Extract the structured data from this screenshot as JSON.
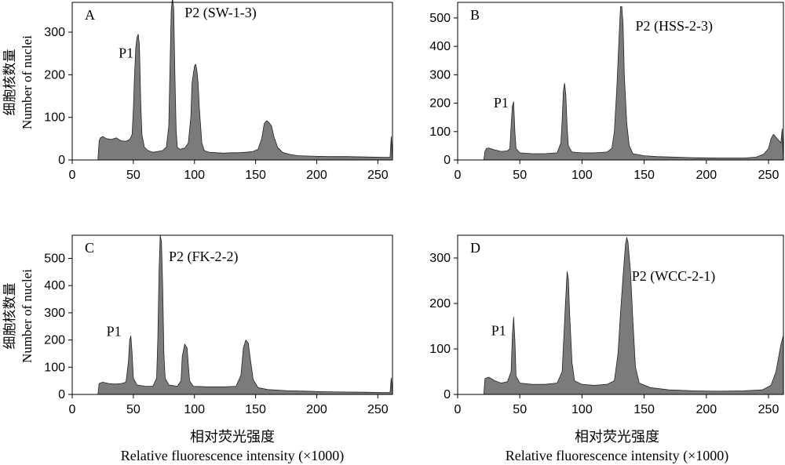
{
  "figure": {
    "ylabel_cn": "细胞核数量",
    "ylabel_en": "Number of nuclei",
    "xlabel_cn": "相对荧光强度",
    "xlabel_en": "Relative fluorescence intensity (×1000)"
  },
  "colors": {
    "fill": "#7b7b7b",
    "stroke": "#222222",
    "axis": "#000000"
  },
  "chart_data": [
    {
      "type": "area",
      "panel_label": "A",
      "xlim": [
        0,
        262
      ],
      "ylim": [
        0,
        370
      ],
      "xticks": [
        0,
        50,
        100,
        150,
        200,
        250
      ],
      "yticks": [
        0,
        100,
        200,
        300
      ],
      "annotations": [
        {
          "text": "P1",
          "x": 38,
          "y": 240
        },
        {
          "text": "P2 (SW-1-3)",
          "x": 92,
          "y": 335
        }
      ],
      "points": [
        [
          0,
          0
        ],
        [
          20,
          0
        ],
        [
          21,
          0
        ],
        [
          22,
          45
        ],
        [
          23,
          52
        ],
        [
          25,
          55
        ],
        [
          28,
          50
        ],
        [
          32,
          48
        ],
        [
          36,
          52
        ],
        [
          40,
          45
        ],
        [
          44,
          44
        ],
        [
          47,
          48
        ],
        [
          49,
          60
        ],
        [
          50,
          120
        ],
        [
          51,
          200
        ],
        [
          52,
          265
        ],
        [
          53,
          288
        ],
        [
          54,
          295
        ],
        [
          55,
          270
        ],
        [
          56,
          140
        ],
        [
          57,
          60
        ],
        [
          59,
          30
        ],
        [
          62,
          22
        ],
        [
          66,
          18
        ],
        [
          70,
          20
        ],
        [
          74,
          22
        ],
        [
          77,
          30
        ],
        [
          79,
          80
        ],
        [
          80,
          220
        ],
        [
          81,
          350
        ],
        [
          82,
          380
        ],
        [
          83,
          355
        ],
        [
          84,
          200
        ],
        [
          85,
          70
        ],
        [
          86,
          30
        ],
        [
          88,
          25
        ],
        [
          92,
          28
        ],
        [
          95,
          40
        ],
        [
          97,
          100
        ],
        [
          98,
          180
        ],
        [
          100,
          220
        ],
        [
          101,
          225
        ],
        [
          102,
          210
        ],
        [
          103,
          180
        ],
        [
          104,
          120
        ],
        [
          106,
          40
        ],
        [
          108,
          22
        ],
        [
          112,
          18
        ],
        [
          118,
          17
        ],
        [
          124,
          16
        ],
        [
          130,
          17
        ],
        [
          136,
          17
        ],
        [
          142,
          18
        ],
        [
          148,
          20
        ],
        [
          152,
          25
        ],
        [
          155,
          50
        ],
        [
          157,
          85
        ],
        [
          159,
          92
        ],
        [
          161,
          88
        ],
        [
          163,
          80
        ],
        [
          165,
          55
        ],
        [
          168,
          30
        ],
        [
          172,
          18
        ],
        [
          178,
          13
        ],
        [
          185,
          10
        ],
        [
          195,
          9
        ],
        [
          210,
          8
        ],
        [
          225,
          8
        ],
        [
          240,
          7
        ],
        [
          255,
          6
        ],
        [
          260,
          6
        ],
        [
          261,
          55
        ],
        [
          262,
          0
        ]
      ]
    },
    {
      "type": "area",
      "panel_label": "B",
      "xlim": [
        0,
        262
      ],
      "ylim": [
        0,
        555
      ],
      "xticks": [
        0,
        50,
        100,
        150,
        200,
        250
      ],
      "yticks": [
        0,
        100,
        200,
        300,
        400,
        500
      ],
      "annotations": [
        {
          "text": "P1",
          "x": 29,
          "y": 185
        },
        {
          "text": "P2 (HSS-2-3)",
          "x": 143,
          "y": 455
        }
      ],
      "points": [
        [
          0,
          0
        ],
        [
          20,
          0
        ],
        [
          21,
          0
        ],
        [
          22,
          30
        ],
        [
          23,
          40
        ],
        [
          25,
          42
        ],
        [
          30,
          35
        ],
        [
          35,
          30
        ],
        [
          40,
          32
        ],
        [
          42,
          40
        ],
        [
          43,
          120
        ],
        [
          44,
          190
        ],
        [
          45,
          205
        ],
        [
          46,
          100
        ],
        [
          47,
          40
        ],
        [
          50,
          25
        ],
        [
          60,
          22
        ],
        [
          70,
          22
        ],
        [
          80,
          25
        ],
        [
          83,
          60
        ],
        [
          84,
          140
        ],
        [
          85,
          240
        ],
        [
          86,
          270
        ],
        [
          87,
          230
        ],
        [
          88,
          120
        ],
        [
          89,
          50
        ],
        [
          92,
          28
        ],
        [
          100,
          25
        ],
        [
          110,
          25
        ],
        [
          120,
          28
        ],
        [
          124,
          40
        ],
        [
          126,
          100
        ],
        [
          128,
          250
        ],
        [
          130,
          450
        ],
        [
          131,
          540
        ],
        [
          132,
          540
        ],
        [
          133,
          480
        ],
        [
          134,
          300
        ],
        [
          136,
          130
        ],
        [
          138,
          50
        ],
        [
          141,
          22
        ],
        [
          150,
          15
        ],
        [
          160,
          12
        ],
        [
          175,
          10
        ],
        [
          190,
          8
        ],
        [
          210,
          7
        ],
        [
          230,
          7
        ],
        [
          240,
          10
        ],
        [
          246,
          20
        ],
        [
          250,
          40
        ],
        [
          252,
          75
        ],
        [
          254,
          90
        ],
        [
          256,
          80
        ],
        [
          258,
          70
        ],
        [
          260,
          60
        ],
        [
          261,
          110
        ],
        [
          262,
          0
        ]
      ]
    },
    {
      "type": "area",
      "panel_label": "C",
      "xlim": [
        0,
        262
      ],
      "ylim": [
        0,
        585
      ],
      "xticks": [
        0,
        50,
        100,
        150,
        200,
        250
      ],
      "yticks": [
        0,
        100,
        200,
        300,
        400,
        500
      ],
      "annotations": [
        {
          "text": "P1",
          "x": 28,
          "y": 215
        },
        {
          "text": "P2 (FK-2-2)",
          "x": 79,
          "y": 490
        }
      ],
      "points": [
        [
          0,
          0
        ],
        [
          21,
          0
        ],
        [
          22,
          40
        ],
        [
          25,
          45
        ],
        [
          30,
          40
        ],
        [
          35,
          38
        ],
        [
          40,
          40
        ],
        [
          44,
          45
        ],
        [
          46,
          120
        ],
        [
          47,
          200
        ],
        [
          48,
          215
        ],
        [
          49,
          150
        ],
        [
          50,
          60
        ],
        [
          53,
          35
        ],
        [
          60,
          30
        ],
        [
          66,
          30
        ],
        [
          69,
          60
        ],
        [
          70,
          200
        ],
        [
          71,
          450
        ],
        [
          72,
          585
        ],
        [
          73,
          560
        ],
        [
          74,
          400
        ],
        [
          75,
          150
        ],
        [
          76,
          60
        ],
        [
          79,
          35
        ],
        [
          86,
          30
        ],
        [
          89,
          50
        ],
        [
          90,
          140
        ],
        [
          92,
          185
        ],
        [
          94,
          170
        ],
        [
          95,
          110
        ],
        [
          96,
          50
        ],
        [
          99,
          30
        ],
        [
          110,
          28
        ],
        [
          125,
          28
        ],
        [
          134,
          30
        ],
        [
          138,
          70
        ],
        [
          140,
          170
        ],
        [
          142,
          200
        ],
        [
          144,
          190
        ],
        [
          146,
          120
        ],
        [
          148,
          55
        ],
        [
          152,
          25
        ],
        [
          160,
          18
        ],
        [
          175,
          14
        ],
        [
          190,
          12
        ],
        [
          205,
          10
        ],
        [
          220,
          9
        ],
        [
          240,
          8
        ],
        [
          255,
          7
        ],
        [
          260,
          7
        ],
        [
          261,
          60
        ],
        [
          262,
          0
        ]
      ]
    },
    {
      "type": "area",
      "panel_label": "D",
      "xlim": [
        0,
        262
      ],
      "ylim": [
        0,
        350
      ],
      "xticks": [
        0,
        50,
        100,
        150,
        200,
        250
      ],
      "yticks": [
        0,
        100,
        200,
        300
      ],
      "annotations": [
        {
          "text": "P1",
          "x": 27,
          "y": 130
        },
        {
          "text": "P2 (WCC-2-1)",
          "x": 140,
          "y": 250
        }
      ],
      "points": [
        [
          0,
          0
        ],
        [
          21,
          0
        ],
        [
          22,
          35
        ],
        [
          25,
          38
        ],
        [
          30,
          30
        ],
        [
          35,
          25
        ],
        [
          40,
          28
        ],
        [
          43,
          50
        ],
        [
          44,
          130
        ],
        [
          45,
          170
        ],
        [
          46,
          120
        ],
        [
          47,
          40
        ],
        [
          50,
          25
        ],
        [
          60,
          22
        ],
        [
          70,
          22
        ],
        [
          80,
          25
        ],
        [
          84,
          50
        ],
        [
          86,
          160
        ],
        [
          88,
          270
        ],
        [
          89,
          255
        ],
        [
          90,
          180
        ],
        [
          92,
          70
        ],
        [
          94,
          30
        ],
        [
          100,
          22
        ],
        [
          110,
          20
        ],
        [
          120,
          22
        ],
        [
          126,
          30
        ],
        [
          129,
          90
        ],
        [
          131,
          180
        ],
        [
          133,
          260
        ],
        [
          135,
          330
        ],
        [
          136,
          345
        ],
        [
          137,
          335
        ],
        [
          139,
          270
        ],
        [
          141,
          160
        ],
        [
          143,
          60
        ],
        [
          146,
          25
        ],
        [
          155,
          15
        ],
        [
          170,
          10
        ],
        [
          190,
          8
        ],
        [
          210,
          7
        ],
        [
          230,
          8
        ],
        [
          245,
          10
        ],
        [
          252,
          20
        ],
        [
          256,
          50
        ],
        [
          258,
          80
        ],
        [
          260,
          110
        ],
        [
          262,
          130
        ],
        [
          262,
          0
        ]
      ]
    }
  ]
}
